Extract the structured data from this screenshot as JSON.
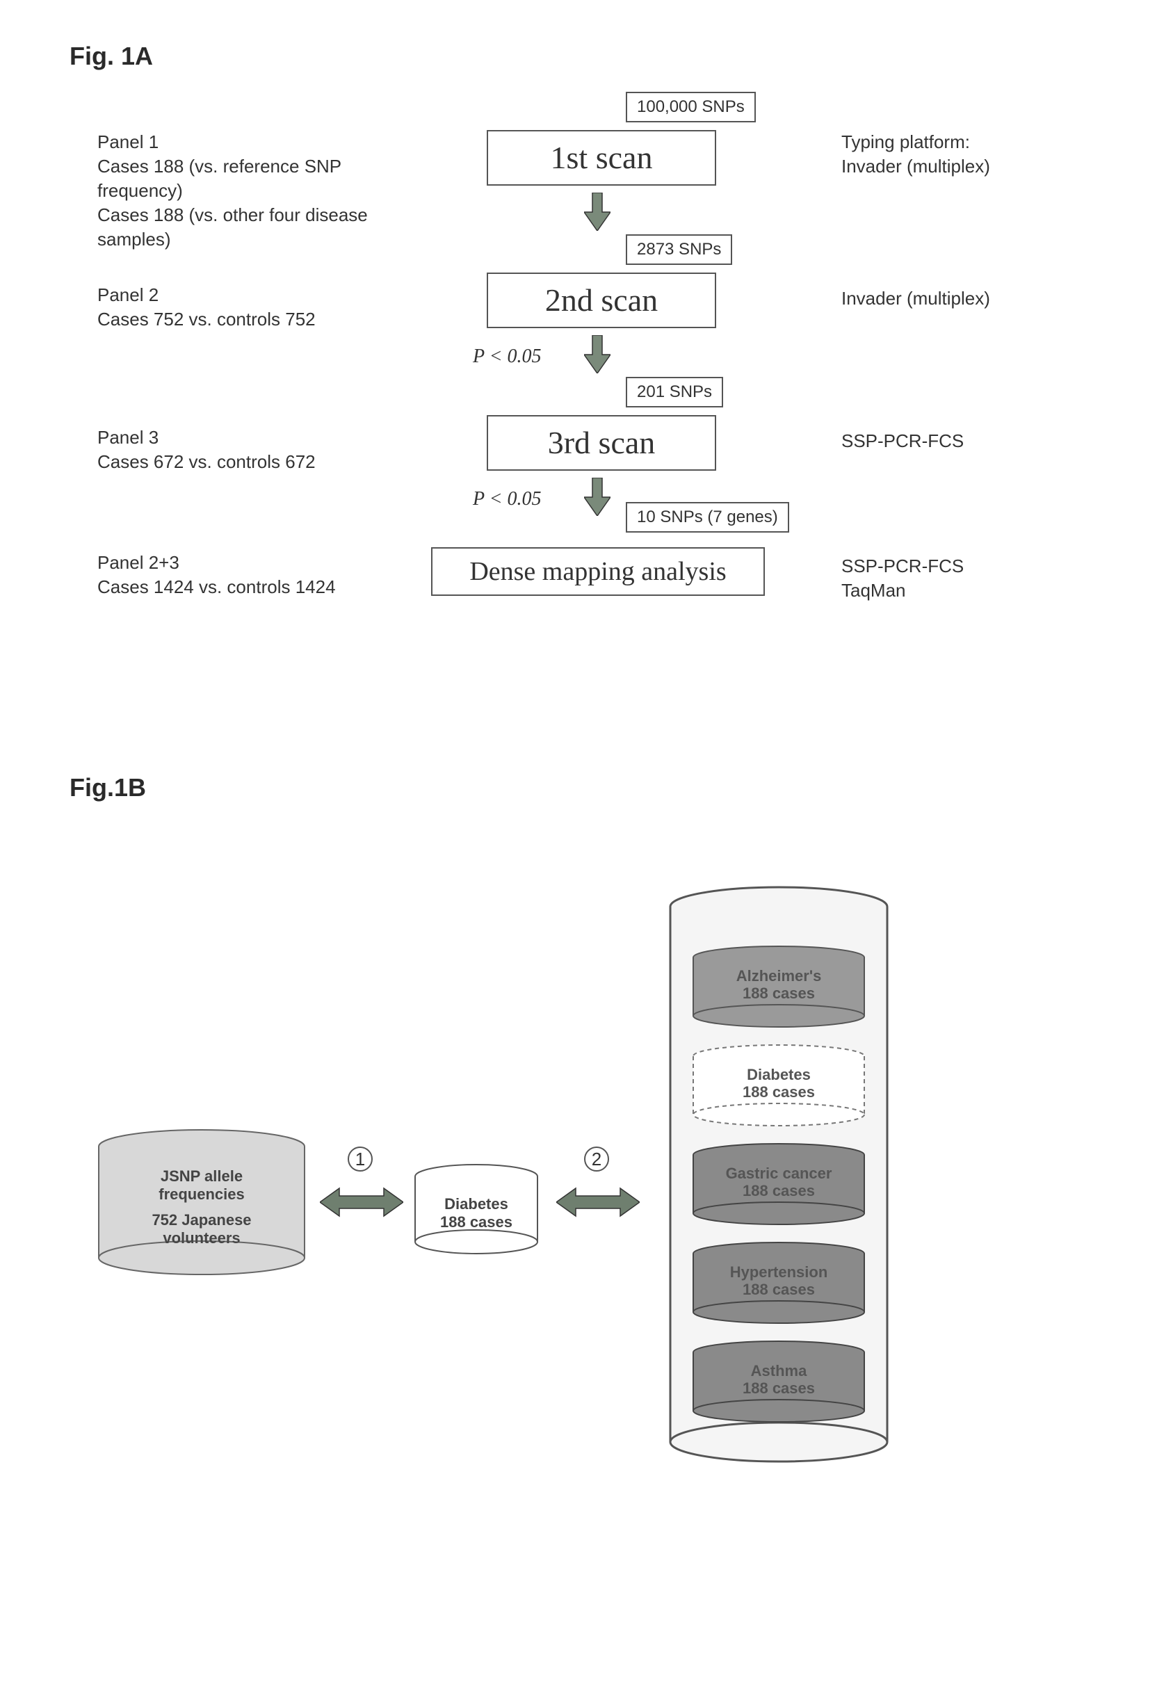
{
  "figA": {
    "label": "Fig. 1A",
    "snp_box_1": "100,000 SNPs",
    "scan1": "1st scan",
    "panel1_title": "Panel 1",
    "panel1_line1": "Cases 188 (vs. reference SNP",
    "panel1_line2": "frequency)",
    "panel1_line3": "Cases 188 (vs. other four disease",
    "panel1_line4": "samples)",
    "platform1_line1": "Typing platform:",
    "platform1_line2": "Invader (multiplex)",
    "snp_box_2": "2873 SNPs",
    "scan2": "2nd scan",
    "panel2_title": "Panel 2",
    "panel2_line1": "Cases 752 vs. controls 752",
    "platform2": "Invader (multiplex)",
    "pval": "P < 0.05",
    "snp_box_3": "201 SNPs",
    "scan3": "3rd scan",
    "panel3_title": "Panel 3",
    "panel3_line1": "Cases 672  vs. controls 672",
    "platform3": "SSP-PCR-FCS",
    "snp_box_4": "10 SNPs (7 genes)",
    "dense": "Dense mapping analysis",
    "panel23_title": "Panel 2+3",
    "panel23_line1": "Cases 1424 vs. controls 1424",
    "platform4_line1": "SSP-PCR-FCS",
    "platform4_line2": "TaqMan",
    "colors": {
      "box_border": "#555555",
      "arrow_fill": "#7a8a7a",
      "arrow_stroke": "#333333"
    }
  },
  "figB": {
    "label": "Fig.1B",
    "left_cyl_line1": "JSNP allele",
    "left_cyl_line2": "frequencies",
    "left_cyl_line3": "752 Japanese",
    "left_cyl_line4": "volunteers",
    "mid_cyl_line1": "Diabetes",
    "mid_cyl_line2": "188 cases",
    "num1": "1",
    "num2": "2",
    "stack": [
      {
        "label_line1": "Alzheimer's",
        "label_line2": "188 cases",
        "fill": "#9a9a9a",
        "stroke": "#555",
        "dashed": false
      },
      {
        "label_line1": "Diabetes",
        "label_line2": "188 cases",
        "fill": "#ffffff",
        "stroke": "#777",
        "dashed": true
      },
      {
        "label_line1": "Gastric cancer",
        "label_line2": "188 cases",
        "fill": "#8a8a8a",
        "stroke": "#444",
        "dashed": false
      },
      {
        "label_line1": "Hypertension",
        "label_line2": "188 cases",
        "fill": "#8a8a8a",
        "stroke": "#444",
        "dashed": false
      },
      {
        "label_line1": "Asthma",
        "label_line2": "188 cases",
        "fill": "#8a8a8a",
        "stroke": "#444",
        "dashed": false
      }
    ],
    "colors": {
      "left_cyl_fill": "#d8d8d8",
      "left_cyl_stroke": "#666",
      "mid_cyl_fill": "#ffffff",
      "mid_cyl_stroke": "#555",
      "tall_cyl_fill": "#f5f5f5",
      "tall_cyl_stroke": "#555",
      "arrow_fill": "#6f7f6f",
      "arrow_stroke": "#333"
    }
  }
}
